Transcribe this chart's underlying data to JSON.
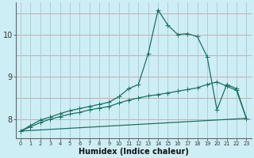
{
  "xlabel": "Humidex (Indice chaleur)",
  "bg_color": "#ceeef5",
  "line_color": "#1a7060",
  "hgrid_color": "#c8a0a0",
  "vgrid_color": "#a8c8cc",
  "xlim": [
    -0.5,
    23.5
  ],
  "ylim": [
    7.55,
    10.75
  ],
  "yticks": [
    8,
    9,
    10
  ],
  "xticks": [
    0,
    1,
    2,
    3,
    4,
    5,
    6,
    7,
    8,
    9,
    10,
    11,
    12,
    13,
    14,
    15,
    16,
    17,
    18,
    19,
    20,
    21,
    22,
    23
  ],
  "line1_x": [
    0,
    1,
    2,
    3,
    4,
    5,
    6,
    7,
    8,
    9,
    10,
    11,
    12,
    13,
    14,
    15,
    16,
    17,
    18,
    19,
    20,
    21,
    22,
    23
  ],
  "line1_y": [
    7.72,
    7.85,
    7.98,
    8.05,
    8.13,
    8.2,
    8.25,
    8.3,
    8.35,
    8.4,
    8.53,
    8.72,
    8.82,
    9.55,
    10.58,
    10.22,
    10.0,
    10.02,
    9.95,
    9.48,
    8.22,
    8.82,
    8.72,
    8.02
  ],
  "line2_x": [
    0,
    1,
    2,
    3,
    4,
    5,
    6,
    7,
    8,
    9,
    10,
    11,
    12,
    13,
    14,
    15,
    16,
    17,
    18,
    19,
    20,
    21,
    22,
    23
  ],
  "line2_y": [
    7.72,
    7.82,
    7.92,
    8.0,
    8.06,
    8.12,
    8.16,
    8.22,
    8.26,
    8.3,
    8.38,
    8.45,
    8.5,
    8.55,
    8.58,
    8.62,
    8.66,
    8.7,
    8.74,
    8.82,
    8.88,
    8.78,
    8.68,
    8.02
  ],
  "line3_x": [
    0,
    23
  ],
  "line3_y": [
    7.72,
    8.02
  ],
  "markersize": 3,
  "linewidth": 0.9
}
